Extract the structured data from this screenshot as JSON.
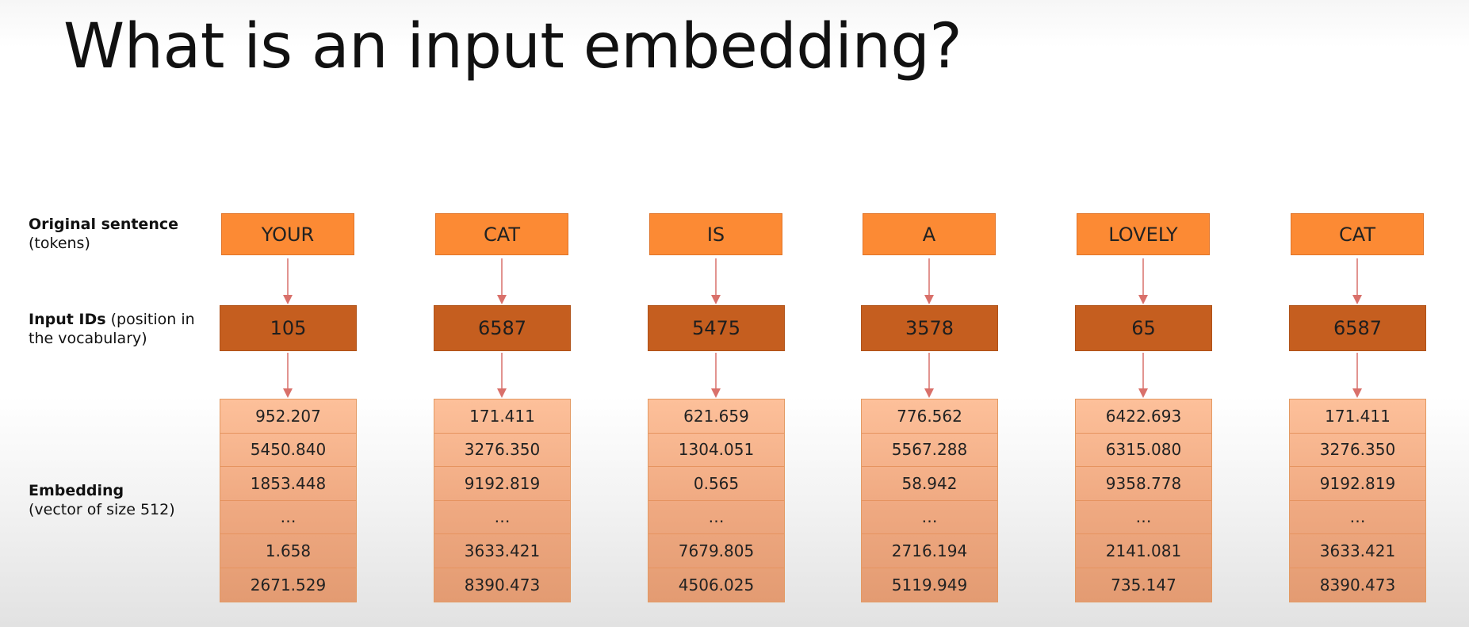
{
  "slide": {
    "title": "What is an input embedding?"
  },
  "row_labels": {
    "tokens_bold": "Original sentence",
    "tokens_sub": "(tokens)",
    "ids_bold": "Input IDs",
    "ids_sub": " (position in the vocabulary)",
    "embedding_bold": "Embedding",
    "embedding_sub": "(vector of size 512)"
  },
  "columns": [
    {
      "token": "YOUR",
      "input_id": "105",
      "embedding": [
        "952.207",
        "5450.840",
        "1853.448",
        "…",
        "1.658",
        "2671.529"
      ]
    },
    {
      "token": "CAT",
      "input_id": "6587",
      "embedding": [
        "171.411",
        "3276.350",
        "9192.819",
        "…",
        "3633.421",
        "8390.473"
      ]
    },
    {
      "token": "IS",
      "input_id": "5475",
      "embedding": [
        "621.659",
        "1304.051",
        "0.565",
        "…",
        "7679.805",
        "4506.025"
      ]
    },
    {
      "token": "A",
      "input_id": "3578",
      "embedding": [
        "776.562",
        "5567.288",
        "58.942",
        "…",
        "2716.194",
        "5119.949"
      ]
    },
    {
      "token": "LOVELY",
      "input_id": "65",
      "embedding": [
        "6422.693",
        "6315.080",
        "9358.778",
        "…",
        "2141.081",
        "735.147"
      ]
    },
    {
      "token": "CAT",
      "input_id": "6587",
      "embedding": [
        "171.411",
        "3276.350",
        "9192.819",
        "…",
        "3633.421",
        "8390.473"
      ]
    }
  ],
  "colors": {
    "token_box": "#fc8a34",
    "id_box": "#c55e1f",
    "embedding_top": "#fdc09a",
    "embedding_bottom": "#e39b72",
    "arrow": "#d9706a"
  }
}
